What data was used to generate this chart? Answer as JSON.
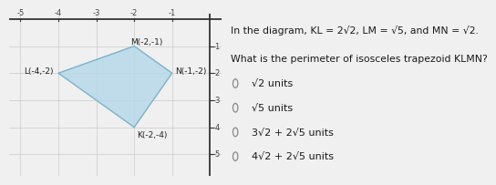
{
  "points": {
    "K": [
      -2,
      -4
    ],
    "L": [
      -4,
      -2
    ],
    "M": [
      -2,
      -1
    ],
    "N": [
      -1,
      -2
    ]
  },
  "polygon_fill": "#b8d8e8",
  "polygon_edge": "#7ab0c8",
  "grid_color": "#cccccc",
  "axis_color": "#333333",
  "background": "#f5f5f5",
  "xlim": [
    -5.3,
    0.3
  ],
  "ylim": [
    -5.8,
    0.2
  ],
  "xticks": [
    -5,
    -4,
    -3,
    -2,
    -1
  ],
  "yticks": [
    -5,
    -4,
    -3,
    -2,
    -1
  ],
  "question_title": "In the diagram, KL = 2√2, LM = √5, and MN = √2.",
  "question_sub": "What is the perimeter of isosceles trapezoid KLMN?",
  "options": [
    "√2 units",
    "√5 units",
    "3√2 + 2√5 units",
    "4√2 + 2√5 units"
  ],
  "label_fontsize": 6.5,
  "tick_fontsize": 6.0,
  "question_fontsize": 7.8,
  "option_fontsize": 8.0
}
